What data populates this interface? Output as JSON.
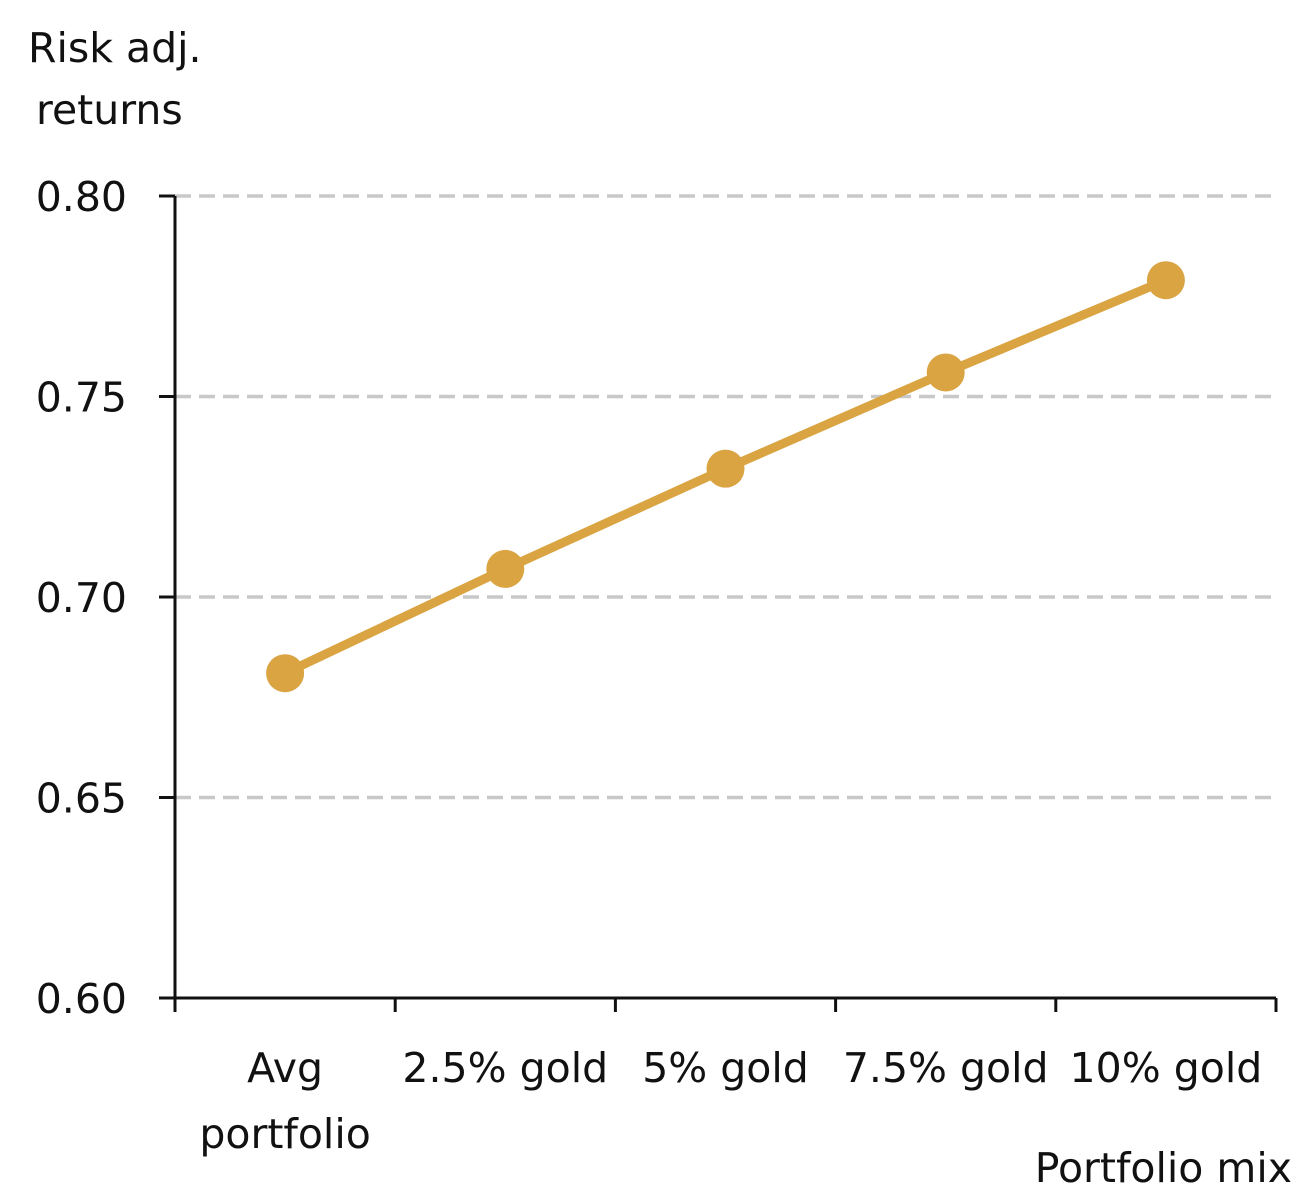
{
  "chart_data": {
    "type": "line",
    "title": "",
    "ylabel_lines": [
      "Risk adj.",
      "returns"
    ],
    "xlabel": "Portfolio mix",
    "categories": [
      [
        "Avg",
        "portfolio"
      ],
      [
        "2.5% gold"
      ],
      [
        "5% gold"
      ],
      [
        "7.5% gold"
      ],
      [
        "10% gold"
      ]
    ],
    "series": [
      {
        "values": [
          0.681,
          0.707,
          0.732,
          0.756,
          0.779
        ],
        "color": "#D9A441"
      }
    ],
    "ylim": [
      0.6,
      0.8
    ],
    "yticks": [
      0.6,
      0.65,
      0.7,
      0.75,
      0.8
    ],
    "ytick_labels": [
      "0.60",
      "0.65",
      "0.70",
      "0.75",
      "0.80"
    ],
    "grid": "horizontal-dashed",
    "grid_color": "#C8C8C8",
    "axis_color": "#111111",
    "legend": "none"
  }
}
